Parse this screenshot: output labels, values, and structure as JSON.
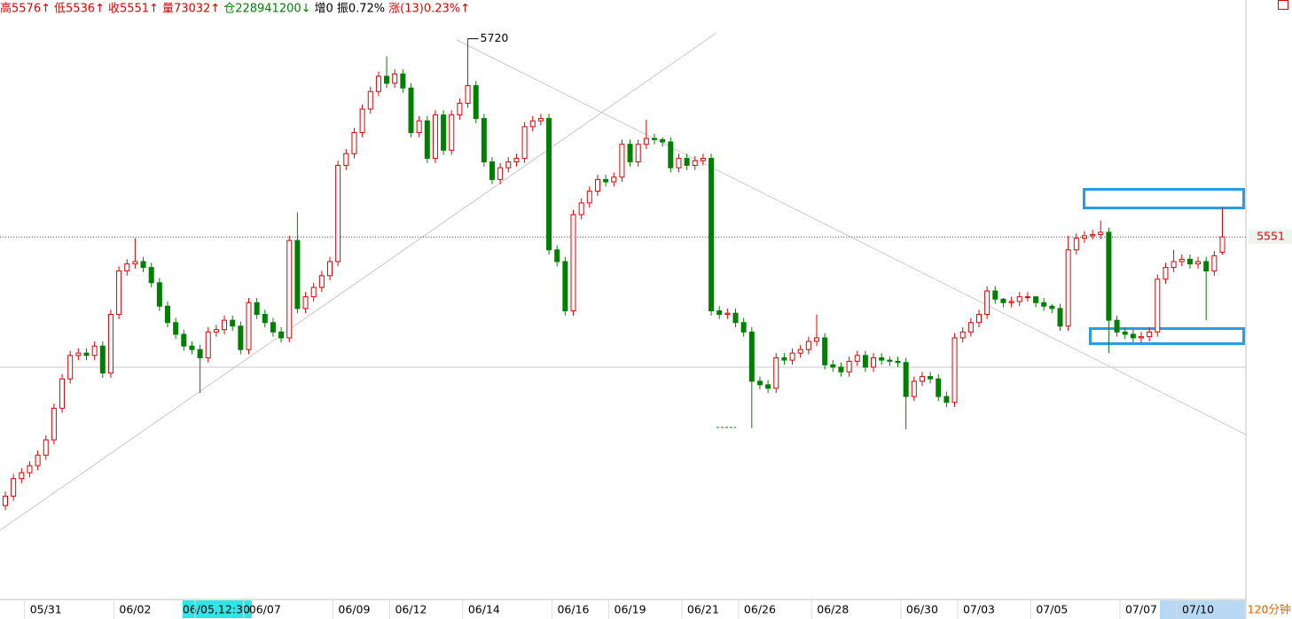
{
  "chart_data": {
    "type": "candlestick",
    "header": [
      {
        "text": "高5576↑",
        "color": "#e00000"
      },
      {
        "text": "低5536↑",
        "color": "#e00000"
      },
      {
        "text": "收5551↑",
        "color": "#e00000"
      },
      {
        "text": "量73032↑",
        "color": "#e00000"
      },
      {
        "text": "仓228941200↓",
        "color": "#008000"
      },
      {
        "text": "增0",
        "color": "#000000"
      },
      {
        "text": "振0.72%",
        "color": "#000000"
      },
      {
        "text": "涨(13)0.23%↑",
        "color": "#e00000"
      }
    ],
    "period_label": "120分钟",
    "up_color": "#e00000",
    "down_color": "#008000",
    "ylim": [
      5248,
      5753
    ],
    "categories": [
      null,
      null,
      null,
      null,
      null,
      "05/31",
      null,
      null,
      null,
      null,
      null,
      null,
      null,
      null,
      null,
      null,
      "06/02",
      null,
      null,
      null,
      null,
      null,
      null,
      null,
      null,
      null,
      "06/05,12:30",
      null,
      null,
      null,
      null,
      null,
      "06/07",
      null,
      null,
      null,
      null,
      null,
      null,
      null,
      null,
      null,
      null,
      "06/09",
      null,
      null,
      null,
      null,
      null,
      null,
      "06/12",
      null,
      null,
      null,
      null,
      null,
      null,
      null,
      null,
      "06/14",
      null,
      null,
      null,
      null,
      null,
      null,
      null,
      null,
      null,
      null,
      "06/16",
      null,
      null,
      null,
      null,
      null,
      null,
      "06/19",
      null,
      null,
      null,
      null,
      null,
      null,
      null,
      null,
      "06/21",
      null,
      null,
      null,
      null,
      null,
      null,
      "06/26",
      null,
      null,
      null,
      null,
      null,
      null,
      null,
      null,
      "06/28",
      null,
      null,
      null,
      null,
      null,
      null,
      null,
      null,
      null,
      null,
      "06/30",
      null,
      null,
      null,
      null,
      null,
      null,
      "07/03",
      null,
      null,
      null,
      null,
      null,
      null,
      null,
      null,
      "07/05",
      null,
      null,
      null,
      null,
      null,
      null,
      null,
      null,
      null,
      null,
      "07/07",
      null,
      null,
      null,
      null,
      null,
      null,
      "07/10",
      null,
      null,
      null
    ],
    "open": [
      5322,
      5330,
      5345,
      5350,
      5356,
      5365,
      5378,
      5405,
      5430,
      5450,
      5452,
      5450,
      5458,
      5435,
      5485,
      5522,
      5528,
      5530,
      5525,
      5512,
      5492,
      5478,
      5468,
      5458,
      5455,
      5448,
      5470,
      5472,
      5480,
      5475,
      5455,
      5495,
      5485,
      5478,
      5470,
      5465,
      5548,
      5490,
      5500,
      5508,
      5518,
      5530,
      5612,
      5622,
      5640,
      5660,
      5675,
      5688,
      5682,
      5690,
      5678,
      5640,
      5650,
      5618,
      5655,
      5625,
      5655,
      5665,
      5680,
      5652,
      5615,
      5600,
      5610,
      5615,
      5618,
      5645,
      5650,
      5652,
      5540,
      5530,
      5488,
      5570,
      5580,
      5590,
      5600,
      5598,
      5602,
      5630,
      5615,
      5630,
      5635,
      5634,
      5632,
      5610,
      5618,
      5612,
      5616,
      5618,
      5488,
      5485,
      5486,
      5478,
      5470,
      5428,
      5425,
      5422,
      5448,
      5446,
      5452,
      5455,
      5462,
      5465,
      5442,
      5440,
      5436,
      5445,
      5450,
      5440,
      5448,
      5446,
      5445,
      5444,
      5415,
      5428,
      5432,
      5430,
      5415,
      5410,
      5465,
      5470,
      5478,
      5485,
      5505,
      5498,
      5495,
      5496,
      5500,
      5500,
      5495,
      5492,
      5490,
      5475,
      5540,
      5550,
      5552,
      5553,
      5555,
      5480,
      5470,
      5468,
      5465,
      5466,
      5470,
      5515,
      5525,
      5530,
      5532,
      5528,
      5530,
      5522,
      5538
    ],
    "high": [
      5334,
      5349,
      5354,
      5360,
      5369,
      5382,
      5409,
      5434,
      5454,
      5456,
      5456,
      5462,
      5462,
      5489,
      5526,
      5532,
      5550,
      5534,
      5529,
      5516,
      5496,
      5482,
      5472,
      5462,
      5459,
      5474,
      5476,
      5484,
      5484,
      5479,
      5499,
      5499,
      5489,
      5482,
      5474,
      5552,
      5572,
      5504,
      5512,
      5522,
      5534,
      5616,
      5626,
      5644,
      5664,
      5679,
      5692,
      5705,
      5694,
      5694,
      5682,
      5654,
      5654,
      5659,
      5659,
      5659,
      5669,
      5720,
      5684,
      5656,
      5619,
      5614,
      5619,
      5622,
      5649,
      5654,
      5656,
      5656,
      5544,
      5534,
      5574,
      5584,
      5594,
      5604,
      5604,
      5606,
      5634,
      5634,
      5634,
      5651,
      5639,
      5636,
      5636,
      5622,
      5622,
      5620,
      5622,
      5622,
      5492,
      5490,
      5490,
      5482,
      5474,
      5432,
      5429,
      5452,
      5452,
      5456,
      5459,
      5466,
      5485,
      5469,
      5446,
      5444,
      5449,
      5454,
      5454,
      5452,
      5452,
      5449,
      5449,
      5448,
      5432,
      5436,
      5436,
      5434,
      5419,
      5469,
      5474,
      5482,
      5489,
      5509,
      5509,
      5499,
      5500,
      5504,
      5504,
      5499,
      5499,
      5494,
      5494,
      5552,
      5554,
      5556,
      5557,
      5565,
      5559,
      5484,
      5474,
      5472,
      5470,
      5474,
      5519,
      5529,
      5540,
      5536,
      5536,
      5534,
      5534,
      5539,
      5576
    ],
    "low": [
      5318,
      5326,
      5341,
      5346,
      5352,
      5361,
      5374,
      5401,
      5426,
      5446,
      5446,
      5446,
      5431,
      5431,
      5481,
      5518,
      5524,
      5521,
      5508,
      5488,
      5474,
      5464,
      5454,
      5451,
      5418,
      5444,
      5466,
      5468,
      5471,
      5451,
      5451,
      5481,
      5474,
      5466,
      5461,
      5461,
      5486,
      5486,
      5496,
      5504,
      5514,
      5526,
      5608,
      5618,
      5636,
      5656,
      5671,
      5678,
      5678,
      5674,
      5636,
      5636,
      5614,
      5614,
      5621,
      5621,
      5651,
      5661,
      5648,
      5611,
      5596,
      5596,
      5606,
      5611,
      5614,
      5641,
      5646,
      5536,
      5526,
      5484,
      5484,
      5566,
      5576,
      5586,
      5594,
      5594,
      5598,
      5611,
      5611,
      5626,
      5630,
      5628,
      5606,
      5606,
      5608,
      5608,
      5612,
      5484,
      5481,
      5481,
      5474,
      5466,
      5388,
      5421,
      5418,
      5418,
      5442,
      5442,
      5448,
      5451,
      5458,
      5438,
      5436,
      5432,
      5432,
      5441,
      5436,
      5436,
      5442,
      5441,
      5440,
      5387,
      5411,
      5424,
      5426,
      5411,
      5406,
      5406,
      5461,
      5466,
      5474,
      5481,
      5494,
      5491,
      5491,
      5492,
      5496,
      5491,
      5488,
      5486,
      5471,
      5471,
      5536,
      5546,
      5549,
      5549,
      5452,
      5466,
      5464,
      5461,
      5461,
      5462,
      5466,
      5511,
      5521,
      5526,
      5524,
      5524,
      5480,
      5518,
      5536
    ],
    "close": [
      5330,
      5345,
      5350,
      5356,
      5365,
      5378,
      5405,
      5430,
      5450,
      5452,
      5450,
      5458,
      5435,
      5485,
      5522,
      5528,
      5530,
      5525,
      5512,
      5492,
      5478,
      5468,
      5458,
      5455,
      5448,
      5470,
      5472,
      5480,
      5475,
      5455,
      5495,
      5485,
      5478,
      5470,
      5465,
      5548,
      5490,
      5500,
      5508,
      5518,
      5530,
      5612,
      5622,
      5640,
      5660,
      5675,
      5688,
      5682,
      5690,
      5678,
      5640,
      5650,
      5618,
      5655,
      5625,
      5655,
      5665,
      5680,
      5652,
      5615,
      5600,
      5610,
      5615,
      5618,
      5645,
      5650,
      5652,
      5540,
      5530,
      5488,
      5570,
      5580,
      5590,
      5600,
      5598,
      5602,
      5630,
      5615,
      5630,
      5635,
      5634,
      5632,
      5610,
      5618,
      5612,
      5616,
      5618,
      5488,
      5485,
      5486,
      5478,
      5470,
      5428,
      5425,
      5422,
      5448,
      5446,
      5452,
      5455,
      5462,
      5465,
      5442,
      5440,
      5436,
      5445,
      5450,
      5440,
      5448,
      5446,
      5445,
      5444,
      5415,
      5428,
      5432,
      5430,
      5415,
      5410,
      5465,
      5470,
      5478,
      5485,
      5505,
      5498,
      5495,
      5496,
      5500,
      5500,
      5495,
      5492,
      5490,
      5475,
      5540,
      5550,
      5552,
      5553,
      5555,
      5480,
      5470,
      5468,
      5465,
      5466,
      5470,
      5515,
      5525,
      5530,
      5532,
      5528,
      5530,
      5522,
      5535,
      5551
    ]
  }
}
